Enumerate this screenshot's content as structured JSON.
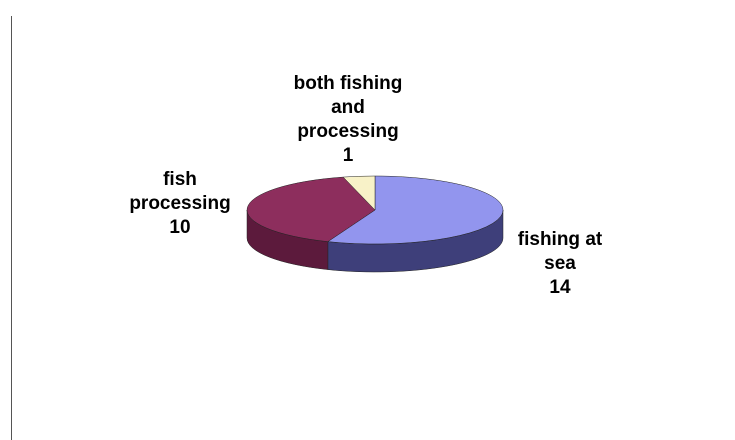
{
  "chart_data": {
    "type": "pie",
    "style": "3d",
    "slices": [
      {
        "category_lines": [
          "fishing at",
          "sea"
        ],
        "value": 14,
        "color": "#9295ee",
        "side_color": "#3e3f7a"
      },
      {
        "category_lines": [
          "fish",
          "processing"
        ],
        "value": 10,
        "color": "#8d2e5d",
        "side_color": "#5c1a3c"
      },
      {
        "category_lines": [
          "both fishing",
          "and",
          "processing"
        ],
        "value": 1,
        "color": "#f8f2c8",
        "side_color": "#bdb688"
      }
    ],
    "legend": "none"
  }
}
